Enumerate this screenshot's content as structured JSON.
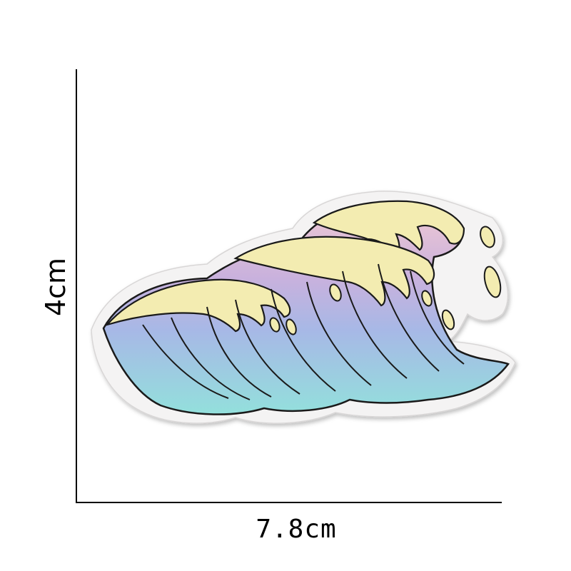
{
  "dimensions": {
    "height_label": "4cm",
    "width_label": "7.8cm"
  },
  "patch": {
    "subject": "wave-patch",
    "colors": {
      "backing": "#f4f3f3",
      "outline": "#1a1a1a",
      "crest": "#f3ecb1",
      "pink": "#f0c9d3",
      "lavender": "#b6a6dc",
      "periwinkle": "#a7b8e6",
      "aqua": "#93e0dc"
    }
  }
}
